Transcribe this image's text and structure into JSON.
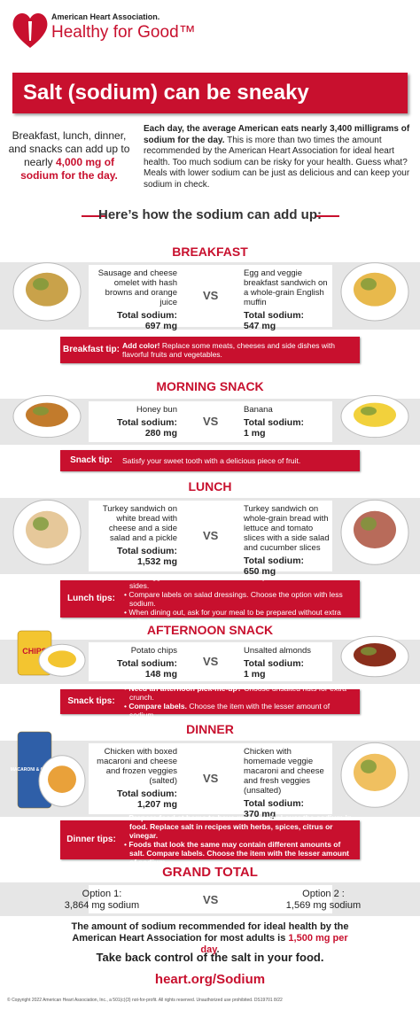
{
  "header": {
    "org": "American Heart Association.",
    "brand": "Healthy for Good™"
  },
  "title": "Salt (sodium) can be sneaky",
  "intro": {
    "left": {
      "text": "Breakfast, lunch, dinner, and snacks can add up to nearly ",
      "highlight": "4,000 mg of sodium for the day."
    },
    "right": {
      "bold": "Each day, the average American eats nearly 3,400 milligrams of sodium for the day.",
      "text": " This is more than two times the amount recommended by the American Heart Association for ideal heart health. Too much sodium can be risky for your health. Guess what? Meals with lower sodium can be just as delicious and can keep your sodium in check."
    }
  },
  "subheading": "Here’s how the sodium can add up:",
  "sections": [
    {
      "title": "BREAKFAST",
      "vs": "VS",
      "left": {
        "desc": "Sausage and cheese omelet with hash browns and orange juice",
        "total_label": "Total sodium:",
        "total": "697 mg"
      },
      "right": {
        "desc": "Egg and veggie breakfast sandwich on a whole-grain English muffin",
        "total_label": "Total sodium:",
        "total": "547 mg"
      },
      "tip_label": "Breakfast tip:",
      "tips": [
        {
          "lead": "Add color!",
          "text": " Replace some meats, cheeses and side dishes with flavorful fruits and vegetables."
        }
      ]
    },
    {
      "title": "MORNING SNACK",
      "vs": "VS",
      "left": {
        "desc": "Honey bun",
        "total_label": "Total sodium:",
        "total": "280 mg"
      },
      "right": {
        "desc": "Banana",
        "total_label": "Total sodium:",
        "total": "1 mg"
      },
      "tip_label": "Snack tip:",
      "tips": [
        {
          "text": "Satisfy your sweet tooth with a delicious piece of fruit."
        }
      ]
    },
    {
      "title": "LUNCH",
      "vs": "VS",
      "left": {
        "desc": "Turkey sandwich on white bread with cheese and a side salad and a pickle",
        "total_label": "Total sodium:",
        "total": "1,532 mg"
      },
      "right": {
        "desc": "Turkey sandwich on whole-grain bread with lettuce and tomato slices with a side salad and cucumber slices",
        "total_label": "Total sodium:",
        "total": "650 mg"
      },
      "tip_label": "Lunch tips:",
      "tips": [
        {
          "text": "Use veggies to add flavor instead of salty condiments, sauces and sides."
        },
        {
          "text": "Compare labels on salad dressings. Choose the option with less sodium."
        },
        {
          "text": "When dining out, ask for your meal to be prepared without extra salt."
        }
      ]
    },
    {
      "title": "AFTERNOON SNACK",
      "vs": "VS",
      "left": {
        "desc": "Potato chips",
        "total_label": "Total sodium:",
        "total": "148 mg",
        "image_label": "CHIPS"
      },
      "right": {
        "desc": "Unsalted almonds",
        "total_label": "Total sodium:",
        "total": "1 mg"
      },
      "tip_label": "Snack tips:",
      "tips": [
        {
          "lead": "Need an afternoon pick-me-up?",
          "text": " Choose unsalted nuts for extra crunch."
        },
        {
          "lead": "Compare labels.",
          "text": " Choose the item with the lesser amount of sodium."
        }
      ]
    },
    {
      "title": "DINNER",
      "vs": "VS",
      "left": {
        "desc": "Chicken with boxed macaroni and cheese and frozen veggies (salted)",
        "total_label": "Total sodium:",
        "total": "1,207 mg",
        "image_label": "MACARONI & CHEESE"
      },
      "right": {
        "desc": "Chicken with homemade veggie macaroni and cheese and fresh veggies (unsalted)",
        "total_label": "Total sodium:",
        "total": "370 mg"
      },
      "tip_label": "Dinner tips:",
      "tips": [
        {
          "text": "Prepare food at home to have more control over the sodium in food. Replace salt in recipes with herbs, spices, citrus or vinegar."
        },
        {
          "text": "Foods that look the same may contain different amounts of salt. Compare labels. Choose the item with the lesser amount of sodium."
        }
      ]
    }
  ],
  "grand_total": {
    "title": "GRAND TOTAL",
    "vs": "VS",
    "left": {
      "label": "Option 1:",
      "total": "3,864 mg sodium"
    },
    "right": {
      "label": "Option 2 :",
      "total": "1,569 mg sodium"
    }
  },
  "footer": {
    "recommendation": {
      "text": "The amount of sodium recommended for ideal health by the American Heart Association for most adults is ",
      "highlight": "1,500 mg per day",
      "end": "."
    },
    "tagline": "Take back control of the salt in your food.",
    "url": "heart.org/Sodium",
    "copyright": "© Copyright 2022 American Heart Association, Inc., a 501(c)(3) not-for-profit. All rights reserved. Unauthorized use prohibited. DS19701 8/22"
  }
}
